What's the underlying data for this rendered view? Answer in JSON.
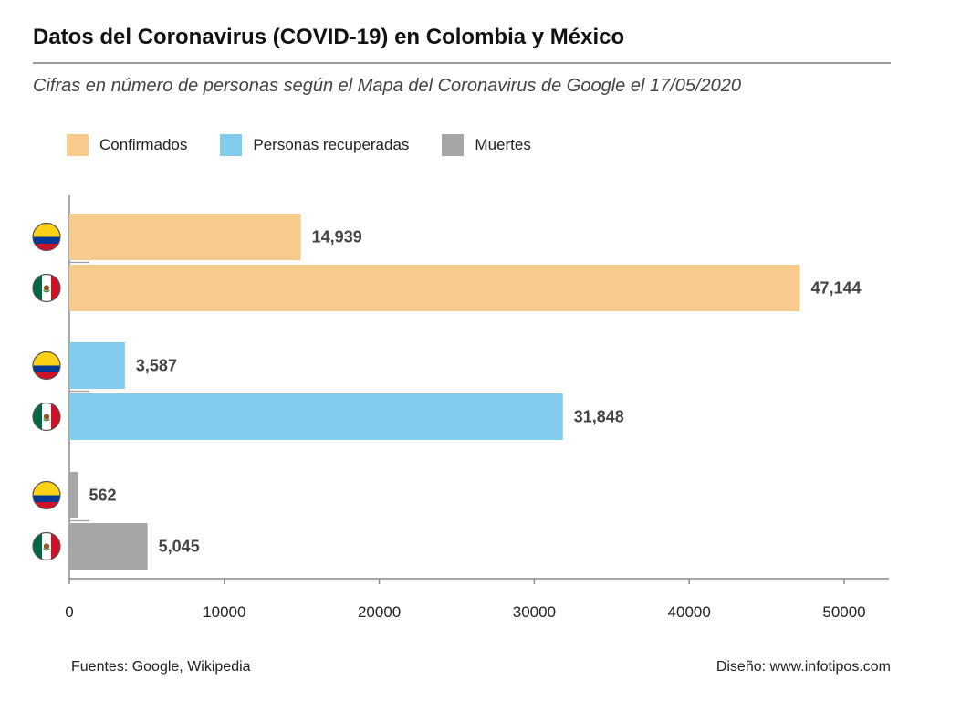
{
  "title": "Datos del Coronavirus (COVID-19) en Colombia y México",
  "subtitle": "Cifras en número de personas según el Mapa del Coronavirus de Google el 17/05/2020",
  "legend": [
    {
      "label": "Confirmados",
      "color": "#f7cb8c"
    },
    {
      "label": "Personas recuperadas",
      "color": "#82cdee"
    },
    {
      "label": "Muertes",
      "color": "#a6a6a6"
    }
  ],
  "footer": {
    "source": "Fuentes: Google, Wikipedia",
    "design": "Diseño: www.infotipos.com"
  },
  "flags": {
    "colombia": {
      "icon": "colombia-flag-icon",
      "colors": [
        "#fcd116",
        "#003893",
        "#ce1126"
      ]
    },
    "mexico": {
      "icon": "mexico-flag-icon",
      "colors": [
        "#006847",
        "#ffffff",
        "#ce1126"
      ]
    }
  },
  "chart_data": {
    "type": "bar",
    "orientation": "horizontal",
    "groups": [
      {
        "series": "Confirmados",
        "color": "#f7cb8c",
        "bars": [
          {
            "country": "Colombia",
            "value": 14939,
            "label": "14,939"
          },
          {
            "country": "México",
            "value": 47144,
            "label": "47,144"
          }
        ]
      },
      {
        "series": "Personas recuperadas",
        "color": "#82cdee",
        "bars": [
          {
            "country": "Colombia",
            "value": 3587,
            "label": "3,587"
          },
          {
            "country": "México",
            "value": 31848,
            "label": "31,848"
          }
        ]
      },
      {
        "series": "Muertes",
        "color": "#a6a6a6",
        "bars": [
          {
            "country": "Colombia",
            "value": 562,
            "label": "562"
          },
          {
            "country": "México",
            "value": 5045,
            "label": "5,045"
          }
        ]
      }
    ],
    "x_ticks": [
      0,
      10000,
      20000,
      30000,
      40000,
      50000
    ],
    "x_tick_labels": [
      "0",
      "10000",
      "20000",
      "30000",
      "40000",
      "50000"
    ],
    "xlim": [
      0,
      51000
    ],
    "xlabel": "",
    "ylabel": "",
    "grid": false,
    "legend_position": "top-left"
  }
}
